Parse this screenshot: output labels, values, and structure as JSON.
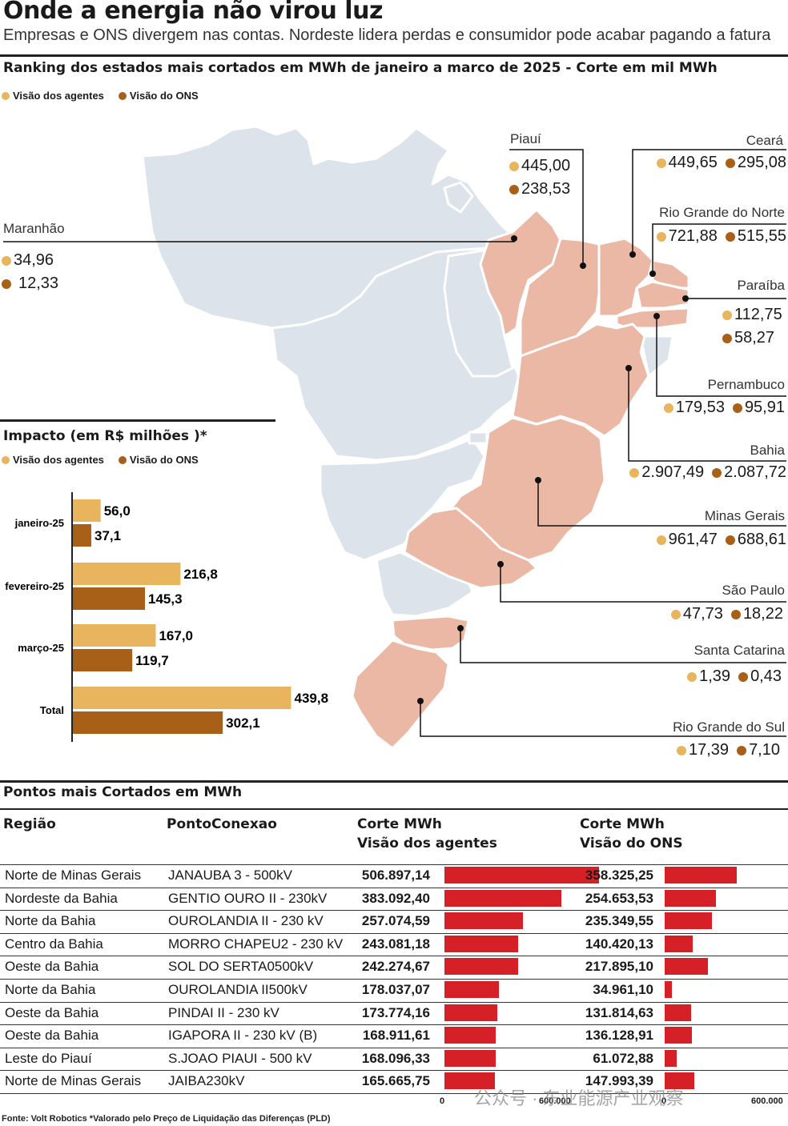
{
  "header": {
    "title": "Onde a energia não virou luz",
    "subtitle": "Empresas e ONS divergem nas contas. Nordeste lidera perdas e consumidor pode acabar pagando a fatura"
  },
  "map_section": {
    "title": "Ranking dos estados mais cortados em MWh de janeiro a marco de 2025 - Corte em mil MWh",
    "legend": {
      "agents": "Visão dos agentes",
      "ons": "Visão do ONS"
    },
    "colors": {
      "agents": "#e9b45e",
      "ons": "#a85f17",
      "highlight": "#eab8a4",
      "base": "#dde3ea"
    },
    "states": [
      {
        "name": "Piauí",
        "agents": "445,00",
        "ons": "238,53"
      },
      {
        "name": "Ceará",
        "agents": "449,65",
        "ons": "295,08"
      },
      {
        "name": "Maranhão",
        "agents": "34,96",
        "ons": "12,33"
      },
      {
        "name": "Rio Grande do Norte",
        "agents": "721,88",
        "ons": "515,55"
      },
      {
        "name": "Paraíba",
        "agents": "112,75",
        "ons": "58,27"
      },
      {
        "name": "Pernambuco",
        "agents": "179,53",
        "ons": "95,91"
      },
      {
        "name": "Bahia",
        "agents": "2.907,49",
        "ons": "2.087,72"
      },
      {
        "name": "Minas Gerais",
        "agents": "961,47",
        "ons": "688,61"
      },
      {
        "name": "São Paulo",
        "agents": "47,73",
        "ons": "18,22"
      },
      {
        "name": "Santa Catarina",
        "agents": "1,39",
        "ons": "0,43"
      },
      {
        "name": "Rio Grande do Sul",
        "agents": "17,39",
        "ons": "7,10"
      }
    ]
  },
  "chart_data": [
    {
      "type": "bar",
      "orientation": "horizontal",
      "title": "Impacto (em R$ milhões )*",
      "categories": [
        "janeiro-25",
        "fevereiro-25",
        "março-25",
        "Total"
      ],
      "series": [
        {
          "name": "Visão dos agentes",
          "values": [
            56.0,
            216.8,
            167.0,
            439.8
          ],
          "labels": [
            "56,0",
            "216,8",
            "167,0",
            "439,8"
          ],
          "color": "#e9b45e"
        },
        {
          "name": "Visão do ONS",
          "values": [
            37.1,
            145.3,
            119.7,
            302.1
          ],
          "labels": [
            "37,1",
            "145,3",
            "119,7",
            "302,1"
          ],
          "color": "#a85f17"
        }
      ],
      "xlim": [
        0,
        460
      ]
    },
    {
      "type": "table",
      "title": "Pontos mais Cortados em MWh",
      "columns": [
        "Região",
        "PontoConexao",
        "Corte MWh Visão dos agentes",
        "Corte MWh Visão do ONS"
      ],
      "header": {
        "regiao": "Região",
        "ponto": "PontoConexao",
        "agentes_1": "Corte MWh",
        "agentes_2": "Visão dos agentes",
        "ons_1": "Corte MWh",
        "ons_2": "Visão do ONS"
      },
      "axis": {
        "min_label": "0",
        "max_label": "600.000",
        "max": 600000
      },
      "rows": [
        {
          "regiao": "Norte de Minas Gerais",
          "ponto": "JANAUBA 3 - 500kV",
          "agentes": "506.897,14",
          "agentes_v": 506897.14,
          "ons": "358.325,25",
          "ons_v": 358325.25
        },
        {
          "regiao": "Nordeste da Bahia",
          "ponto": "GENTIO OURO II - 230kV",
          "agentes": "383.092,40",
          "agentes_v": 383092.4,
          "ons": "254.653,53",
          "ons_v": 254653.53
        },
        {
          "regiao": "Norte da Bahia",
          "ponto": "OUROLANDIA II - 230 kV",
          "agentes": "257.074,59",
          "agentes_v": 257074.59,
          "ons": "235.349,55",
          "ons_v": 235349.55
        },
        {
          "regiao": "Centro da Bahia",
          "ponto": "MORRO CHAPEU2 - 230 kV",
          "agentes": "243.081,18",
          "agentes_v": 243081.18,
          "ons": "140.420,13",
          "ons_v": 140420.13
        },
        {
          "regiao": "Oeste da Bahia",
          "ponto": "SOL DO SERTA0500kV",
          "agentes": "242.274,67",
          "agentes_v": 242274.67,
          "ons": "217.895,10",
          "ons_v": 217895.1
        },
        {
          "regiao": "Norte da Bahia",
          "ponto": "OUROLANDIA II500kV",
          "agentes": "178.037,07",
          "agentes_v": 178037.07,
          "ons": "34.961,10",
          "ons_v": 34961.1
        },
        {
          "regiao": "Oeste da Bahia",
          "ponto": "PINDAI II - 230 kV",
          "agentes": "173.774,16",
          "agentes_v": 173774.16,
          "ons": "131.814,63",
          "ons_v": 131814.63
        },
        {
          "regiao": "Oeste da Bahia",
          "ponto": "IGAPORA II - 230 kV (B)",
          "agentes": "168.911,61",
          "agentes_v": 168911.61,
          "ons": "136.128,91",
          "ons_v": 136128.91
        },
        {
          "regiao": "Leste do Piauí",
          "ponto": "S.JOAO PIAUI - 500 kV",
          "agentes": "168.096,33",
          "agentes_v": 168096.33,
          "ons": "61.072,88",
          "ons_v": 61072.88
        },
        {
          "regiao": "Norte de Minas Gerais",
          "ponto": "JAIBA230kV",
          "agentes": "165.665,75",
          "agentes_v": 165665.75,
          "ons": "147.993,39",
          "ons_v": 147993.39
        }
      ]
    }
  ],
  "footer": {
    "source": "Fonte: Volt Robotics *Valorado pelo Preço de Liquidação das Diferenças (PLD)",
    "watermark": "公众号 · 东业能源产业观察"
  }
}
